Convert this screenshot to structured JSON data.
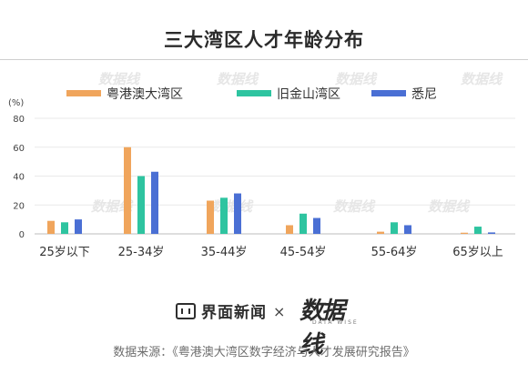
{
  "title": "三大湾区人才年龄分布",
  "footer": {
    "brand": "界面新闻",
    "times": "×",
    "partner": "数据线",
    "partner_sub": "DATA WISE",
    "source": "数据来源：《粤港澳大湾区数字经济与人才发展研究报告》"
  },
  "watermark": "数据线",
  "chart_data": {
    "type": "bar",
    "ylabel": "(%)",
    "ylim": [
      0,
      80
    ],
    "yticks": [
      0,
      20,
      40,
      60,
      80
    ],
    "grid": true,
    "legend_position": "top",
    "categories": [
      "25岁以下",
      "25-34岁",
      "35-44岁",
      "45-54岁",
      "55-64岁",
      "65岁以上"
    ],
    "series": [
      {
        "name": "粤港澳大湾区",
        "color": "#f0a55c",
        "values": [
          9,
          60,
          23,
          6,
          1.5,
          0.8
        ]
      },
      {
        "name": "旧金山湾区",
        "color": "#2ec4a0",
        "values": [
          8,
          40,
          25,
          14,
          8,
          5
        ]
      },
      {
        "name": "悉尼",
        "color": "#4a6fd4",
        "values": [
          10,
          43,
          28,
          11,
          6,
          1
        ]
      }
    ]
  }
}
